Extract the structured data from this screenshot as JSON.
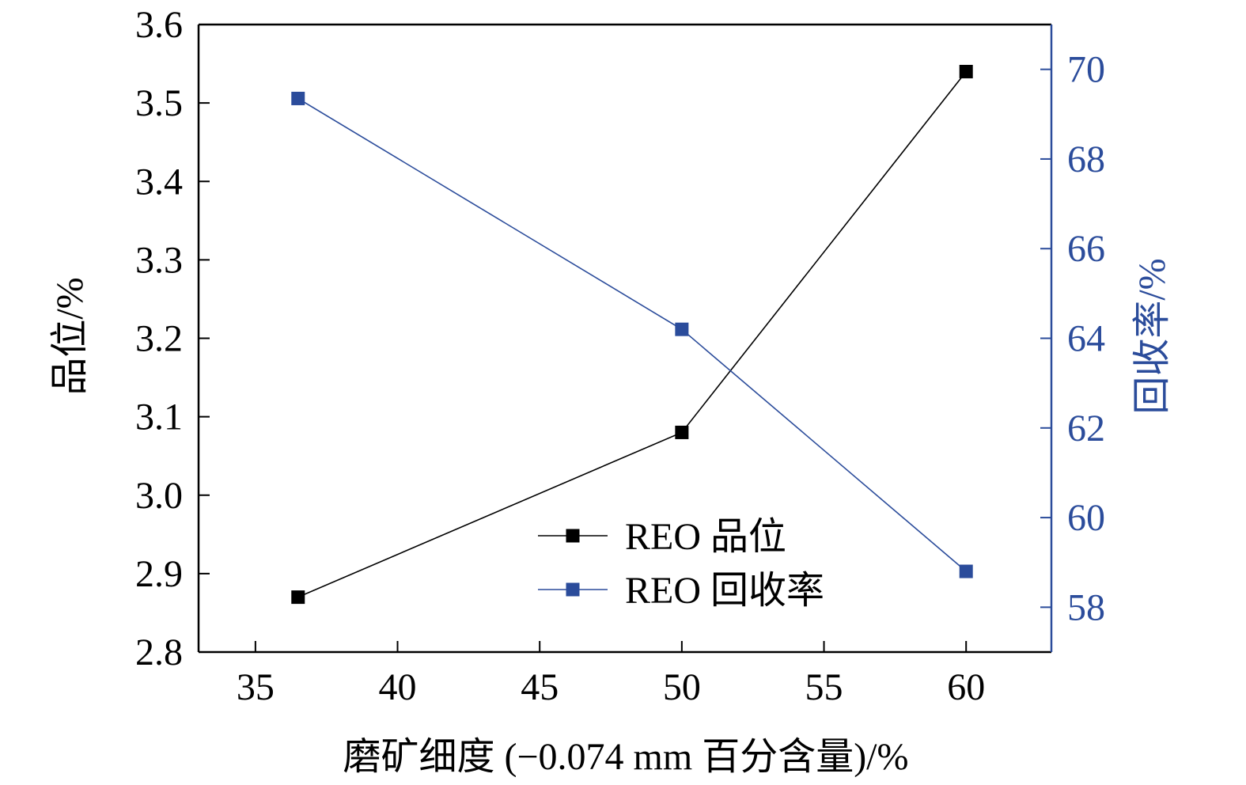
{
  "chart_data": {
    "type": "line",
    "title": "",
    "xlabel": "磨矿细度 (−0.074 mm 百分含量)/%",
    "ylabel": "品位/%",
    "y2label": "回收率/%",
    "x": [
      36.5,
      50,
      60
    ],
    "xlim": [
      33,
      63
    ],
    "xticks": [
      35,
      40,
      45,
      50,
      55,
      60
    ],
    "xtick_labels": [
      "35",
      "40",
      "45",
      "50",
      "55",
      "60"
    ],
    "ylim": [
      2.8,
      3.6
    ],
    "yticks": [
      2.8,
      2.9,
      3.0,
      3.1,
      3.2,
      3.3,
      3.4,
      3.5,
      3.6
    ],
    "ytick_labels": [
      "2.8",
      "2.9",
      "3.0",
      "3.1",
      "3.2",
      "3.3",
      "3.4",
      "3.5",
      "3.6"
    ],
    "y2lim": [
      57,
      71
    ],
    "y2ticks": [
      58,
      60,
      62,
      64,
      66,
      68,
      70
    ],
    "y2tick_labels": [
      "58",
      "60",
      "62",
      "64",
      "66",
      "68",
      "70"
    ],
    "grid": false,
    "legend_position": "bottom-center",
    "series": [
      {
        "name": "REO 品位",
        "axis": "left",
        "marker": "square",
        "color": "#000000",
        "values": [
          2.87,
          3.08,
          3.54
        ]
      },
      {
        "name": "REO 回收率",
        "axis": "right",
        "marker": "square",
        "color": "#2b4c9b",
        "values": [
          69.35,
          64.2,
          58.8
        ]
      }
    ]
  }
}
